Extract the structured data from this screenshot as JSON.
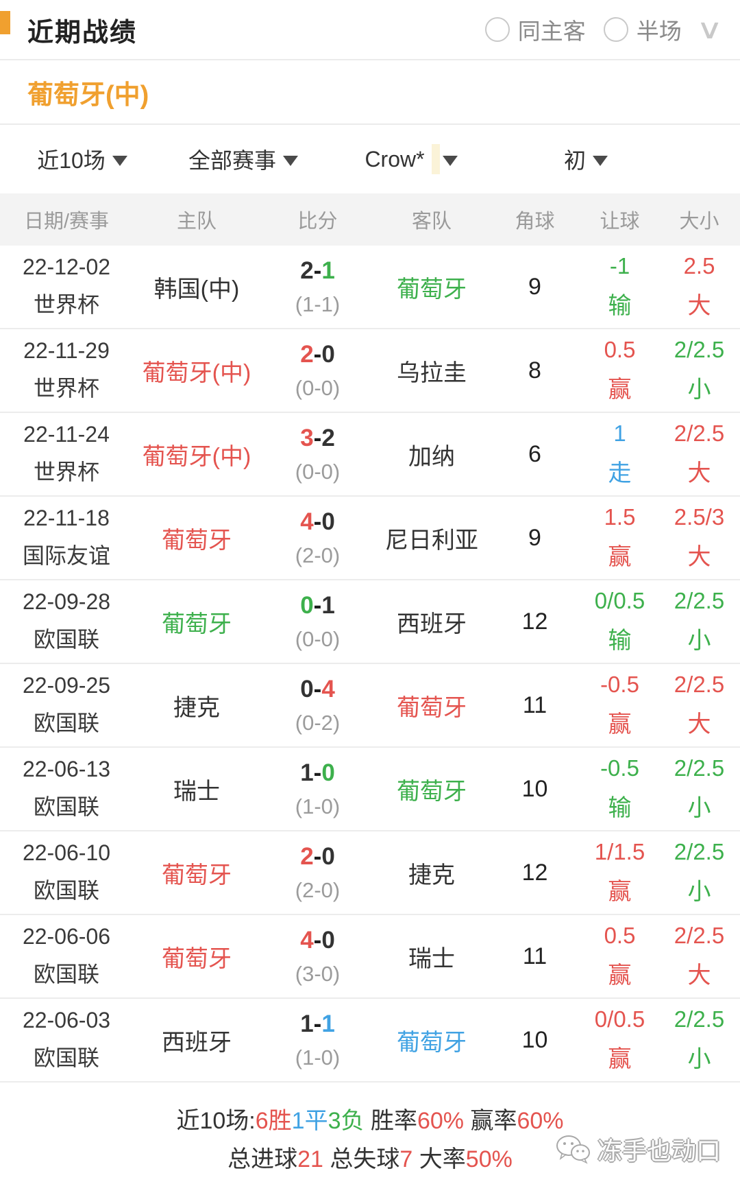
{
  "header": {
    "title": "近期战绩",
    "radio_options": [
      {
        "label": "同主客"
      },
      {
        "label": "半场"
      }
    ],
    "collapse_icon": "∨"
  },
  "team_heading": "葡萄牙(中)",
  "filters": [
    {
      "label": "近10场"
    },
    {
      "label": "全部赛事"
    },
    {
      "label": "Crow*",
      "highlighted": true
    },
    {
      "label": "初"
    }
  ],
  "table": {
    "columns": [
      "日期/赛事",
      "主队",
      "比分",
      "客队",
      "角球",
      "让球",
      "大小"
    ],
    "rows": [
      {
        "date": "22-12-02",
        "comp": "世界杯",
        "home": {
          "name": "韩国(中)",
          "color": "black"
        },
        "score": {
          "home": "2",
          "home_color": "black",
          "away": "1",
          "away_color": "green",
          "half": "(1-1)"
        },
        "away": {
          "name": "葡萄牙",
          "color": "green"
        },
        "corner": "9",
        "handicap": {
          "value": "-1",
          "result": "输",
          "color": "green"
        },
        "over_under": {
          "value": "2.5",
          "result": "大",
          "color": "red"
        }
      },
      {
        "date": "22-11-29",
        "comp": "世界杯",
        "home": {
          "name": "葡萄牙(中)",
          "color": "red"
        },
        "score": {
          "home": "2",
          "home_color": "red",
          "away": "0",
          "away_color": "black",
          "half": "(0-0)"
        },
        "away": {
          "name": "乌拉圭",
          "color": "black"
        },
        "corner": "8",
        "handicap": {
          "value": "0.5",
          "result": "赢",
          "color": "red"
        },
        "over_under": {
          "value": "2/2.5",
          "result": "小",
          "color": "green"
        }
      },
      {
        "date": "22-11-24",
        "comp": "世界杯",
        "home": {
          "name": "葡萄牙(中)",
          "color": "red"
        },
        "score": {
          "home": "3",
          "home_color": "red",
          "away": "2",
          "away_color": "black",
          "half": "(0-0)"
        },
        "away": {
          "name": "加纳",
          "color": "black"
        },
        "corner": "6",
        "handicap": {
          "value": "1",
          "result": "走",
          "color": "blue"
        },
        "over_under": {
          "value": "2/2.5",
          "result": "大",
          "color": "red"
        }
      },
      {
        "date": "22-11-18",
        "comp": "国际友谊",
        "home": {
          "name": "葡萄牙",
          "color": "red"
        },
        "score": {
          "home": "4",
          "home_color": "red",
          "away": "0",
          "away_color": "black",
          "half": "(2-0)"
        },
        "away": {
          "name": "尼日利亚",
          "color": "black"
        },
        "corner": "9",
        "handicap": {
          "value": "1.5",
          "result": "赢",
          "color": "red"
        },
        "over_under": {
          "value": "2.5/3",
          "result": "大",
          "color": "red"
        }
      },
      {
        "date": "22-09-28",
        "comp": "欧国联",
        "home": {
          "name": "葡萄牙",
          "color": "green"
        },
        "score": {
          "home": "0",
          "home_color": "green",
          "away": "1",
          "away_color": "black",
          "half": "(0-0)"
        },
        "away": {
          "name": "西班牙",
          "color": "black"
        },
        "corner": "12",
        "handicap": {
          "value": "0/0.5",
          "result": "输",
          "color": "green"
        },
        "over_under": {
          "value": "2/2.5",
          "result": "小",
          "color": "green"
        }
      },
      {
        "date": "22-09-25",
        "comp": "欧国联",
        "home": {
          "name": "捷克",
          "color": "black"
        },
        "score": {
          "home": "0",
          "home_color": "black",
          "away": "4",
          "away_color": "red",
          "half": "(0-2)"
        },
        "away": {
          "name": "葡萄牙",
          "color": "red"
        },
        "corner": "11",
        "handicap": {
          "value": "-0.5",
          "result": "赢",
          "color": "red"
        },
        "over_under": {
          "value": "2/2.5",
          "result": "大",
          "color": "red"
        }
      },
      {
        "date": "22-06-13",
        "comp": "欧国联",
        "home": {
          "name": "瑞士",
          "color": "black"
        },
        "score": {
          "home": "1",
          "home_color": "black",
          "away": "0",
          "away_color": "green",
          "half": "(1-0)"
        },
        "away": {
          "name": "葡萄牙",
          "color": "green"
        },
        "corner": "10",
        "handicap": {
          "value": "-0.5",
          "result": "输",
          "color": "green"
        },
        "over_under": {
          "value": "2/2.5",
          "result": "小",
          "color": "green"
        }
      },
      {
        "date": "22-06-10",
        "comp": "欧国联",
        "home": {
          "name": "葡萄牙",
          "color": "red"
        },
        "score": {
          "home": "2",
          "home_color": "red",
          "away": "0",
          "away_color": "black",
          "half": "(2-0)"
        },
        "away": {
          "name": "捷克",
          "color": "black"
        },
        "corner": "12",
        "handicap": {
          "value": "1/1.5",
          "result": "赢",
          "color": "red"
        },
        "over_under": {
          "value": "2/2.5",
          "result": "小",
          "color": "green"
        }
      },
      {
        "date": "22-06-06",
        "comp": "欧国联",
        "home": {
          "name": "葡萄牙",
          "color": "red"
        },
        "score": {
          "home": "4",
          "home_color": "red",
          "away": "0",
          "away_color": "black",
          "half": "(3-0)"
        },
        "away": {
          "name": "瑞士",
          "color": "black"
        },
        "corner": "11",
        "handicap": {
          "value": "0.5",
          "result": "赢",
          "color": "red"
        },
        "over_under": {
          "value": "2/2.5",
          "result": "大",
          "color": "red"
        }
      },
      {
        "date": "22-06-03",
        "comp": "欧国联",
        "home": {
          "name": "西班牙",
          "color": "black"
        },
        "score": {
          "home": "1",
          "home_color": "black",
          "away": "1",
          "away_color": "blue",
          "half": "(1-0)"
        },
        "away": {
          "name": "葡萄牙",
          "color": "blue"
        },
        "corner": "10",
        "handicap": {
          "value": "0/0.5",
          "result": "赢",
          "color": "red"
        },
        "over_under": {
          "value": "2/2.5",
          "result": "小",
          "color": "green"
        }
      }
    ]
  },
  "summary": {
    "line1": [
      {
        "text": "近10场:",
        "color": "black"
      },
      {
        "text": "6胜",
        "color": "red"
      },
      {
        "text": "1平",
        "color": "blue"
      },
      {
        "text": "3负",
        "color": "green"
      },
      {
        "text": " 胜率",
        "color": "black"
      },
      {
        "text": "60%",
        "color": "red"
      },
      {
        "text": " 赢率",
        "color": "black"
      },
      {
        "text": "60%",
        "color": "red"
      }
    ],
    "line2": [
      {
        "text": "总进球",
        "color": "black"
      },
      {
        "text": "21",
        "color": "red"
      },
      {
        "text": " 总失球",
        "color": "black"
      },
      {
        "text": "7",
        "color": "red"
      },
      {
        "text": " 大率",
        "color": "black"
      },
      {
        "text": "50%",
        "color": "red"
      }
    ]
  },
  "watermark": {
    "text": "冻手也动口",
    "icon": "wechat-bubbles-icon"
  },
  "colors": {
    "red": "#e4544f",
    "green": "#3db04c",
    "blue": "#40a2e3",
    "orange": "#f0a02f",
    "black": "#333333",
    "gray": "#9a9a9a"
  }
}
